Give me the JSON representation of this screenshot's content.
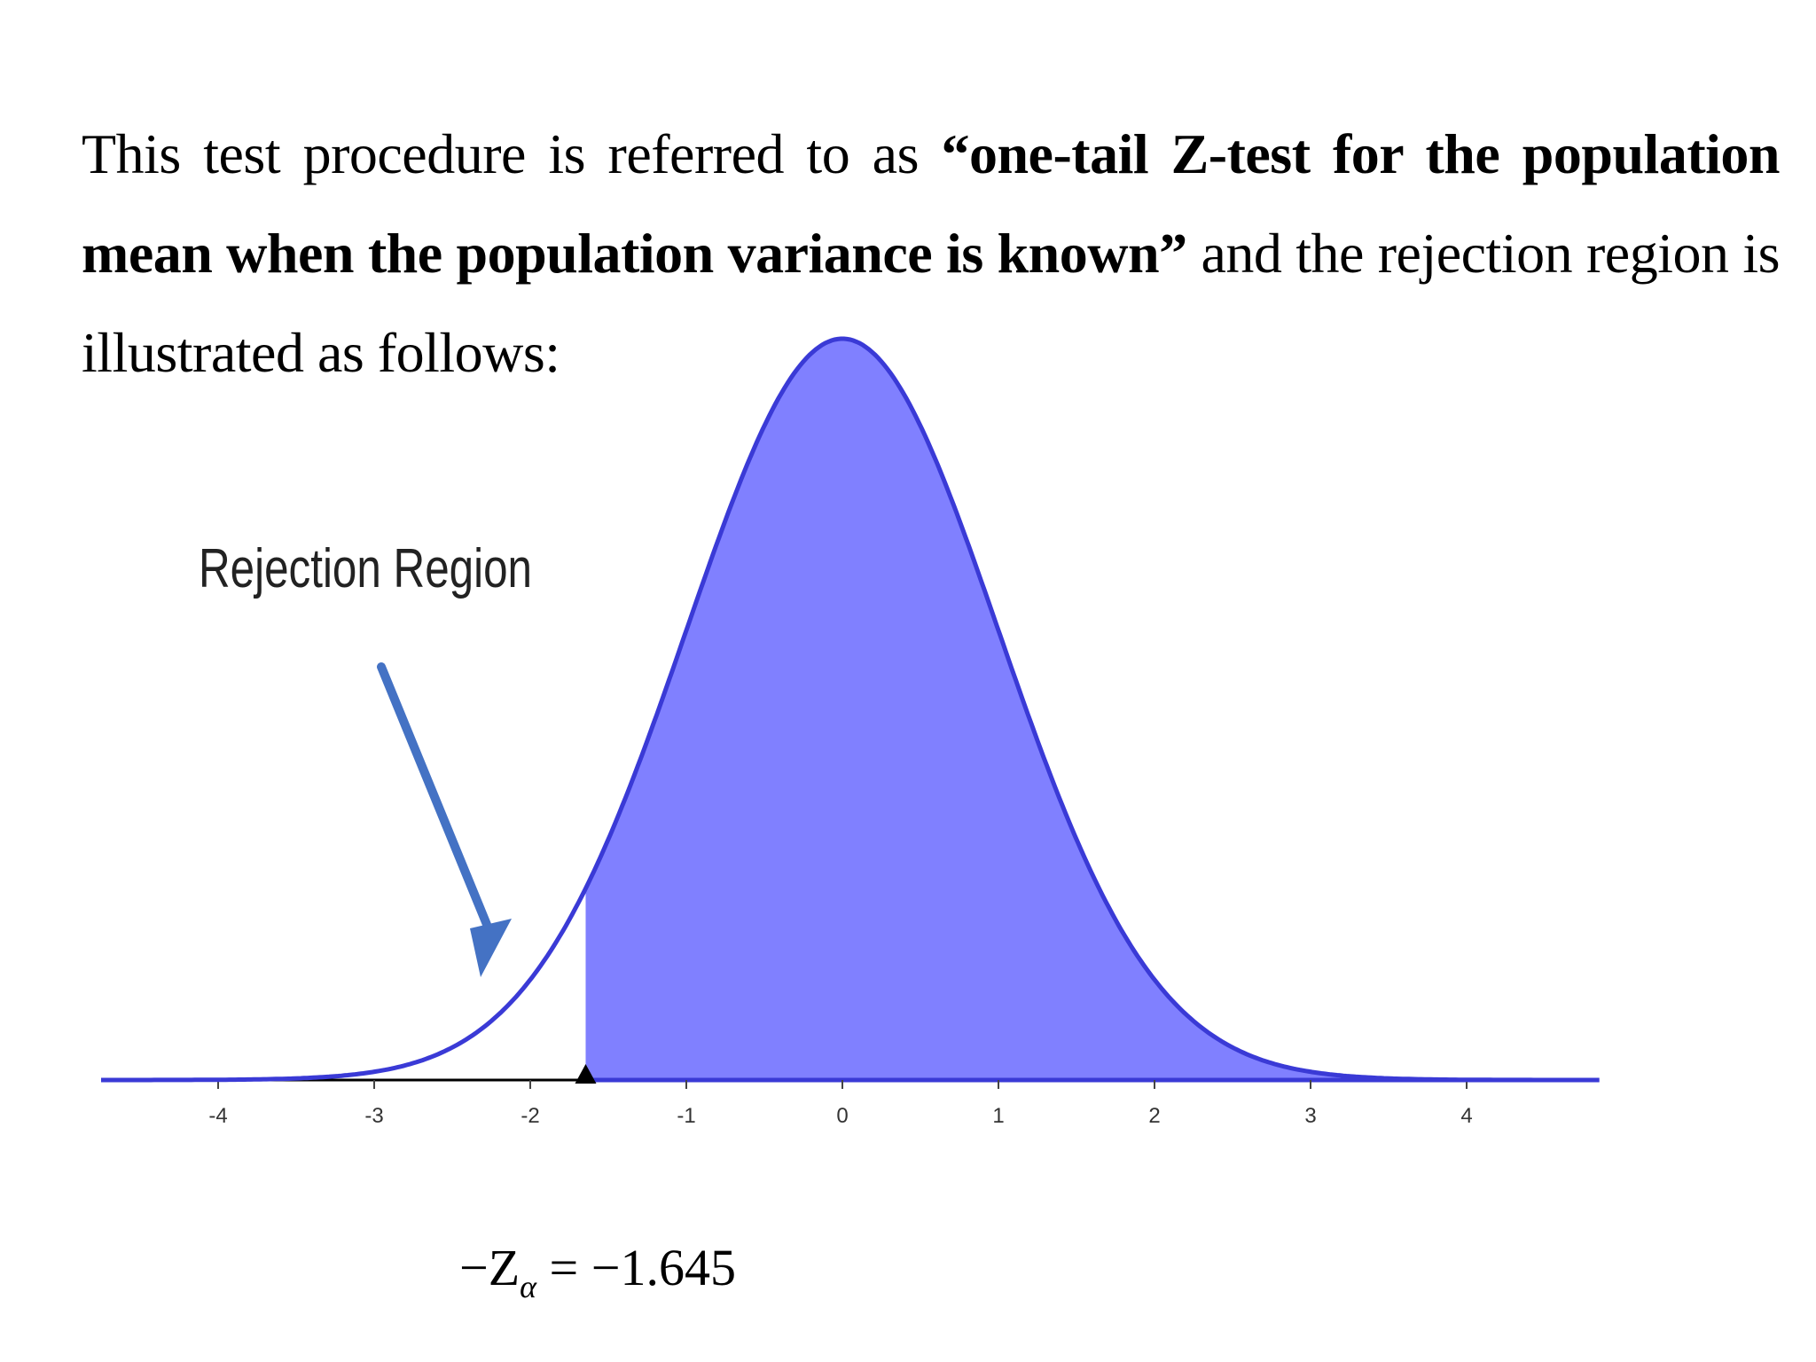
{
  "intro": {
    "part1": "This test procedure is referred to as ",
    "bold": "“one-tail Z-test for the population mean when the population variance is known”",
    "part2": " and the rejection region is illustrated as follows:"
  },
  "chart_data": {
    "type": "area",
    "distribution": "standard normal",
    "xlim": [
      -4.75,
      4.85
    ],
    "ylim": [
      0,
      0.4
    ],
    "x_ticks": [
      -4,
      -3,
      -2,
      -1,
      0,
      1,
      2,
      3,
      4
    ],
    "x_tick_labels": [
      "-4",
      "-3",
      "-2",
      "-1",
      "0",
      "1",
      "2",
      "3",
      "4"
    ],
    "critical_value": -1.645,
    "shaded_region": [
      -1.645,
      4.85
    ],
    "rejection_region_label": "Rejection Region",
    "critical_label": {
      "prefix": "−Z",
      "subscript": "α",
      "suffix": " = −1.645"
    },
    "colors": {
      "fill": "#8080ff",
      "curve": "#3a3ad6",
      "arrow": "#4472c4",
      "axis": "#000000"
    }
  }
}
